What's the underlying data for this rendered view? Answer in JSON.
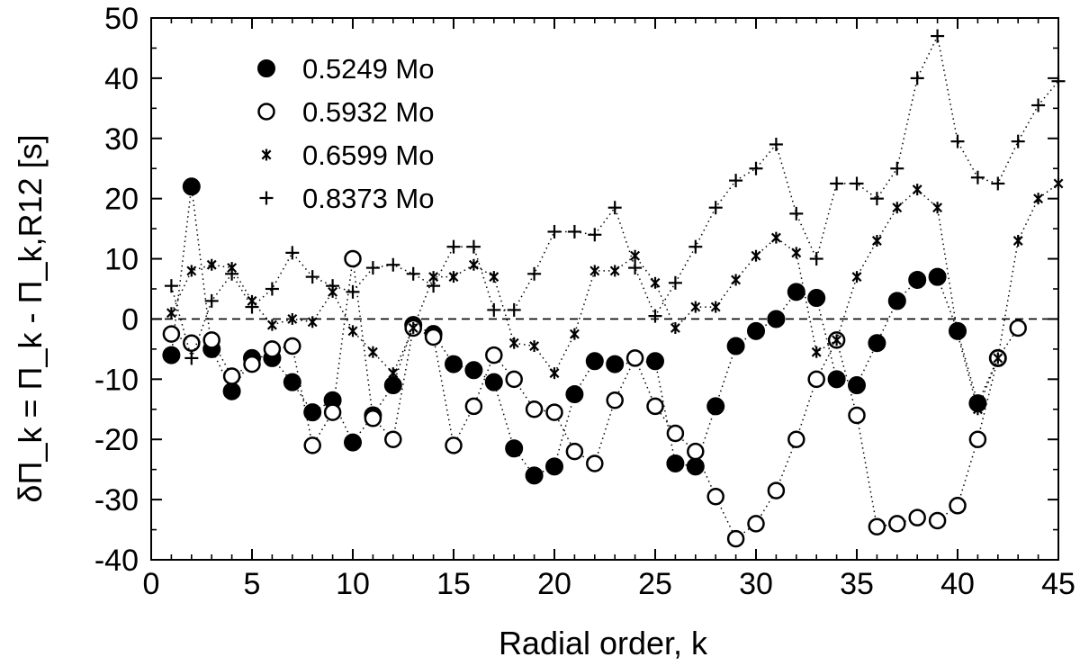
{
  "chart_data": {
    "type": "scatter",
    "xlabel": "Radial order, k",
    "ylabel": "δΠ_k = Π_k - Π_k,R12 [s]",
    "xlim": [
      0,
      45
    ],
    "ylim": [
      -40,
      50
    ],
    "xticks": [
      0,
      5,
      10,
      15,
      20,
      25,
      30,
      35,
      40,
      45
    ],
    "yticks": [
      -40,
      -30,
      -20,
      -10,
      0,
      10,
      20,
      30,
      40,
      50
    ],
    "zero_line": true,
    "grid": false,
    "legend_position": "top-left",
    "series": [
      {
        "name": "0.5249 Mo",
        "marker": "filled-circle",
        "x": [
          1,
          2,
          3,
          4,
          5,
          6,
          7,
          8,
          9,
          10,
          11,
          12,
          13,
          14,
          15,
          16,
          17,
          18,
          19,
          20,
          21,
          22,
          23,
          25,
          26,
          27,
          28,
          29,
          30,
          31,
          32,
          33,
          34,
          35,
          36,
          37,
          38,
          39,
          40,
          41,
          42
        ],
        "y": [
          -6,
          22,
          -5,
          -12,
          -6.5,
          -6.5,
          -10.5,
          -15.5,
          -13.5,
          -20.5,
          -16,
          -11,
          -1,
          -2.5,
          -7.5,
          -8.5,
          -10.5,
          -21.5,
          -26,
          -24.5,
          -12.5,
          -7,
          -7.5,
          -7,
          -24,
          -24.5,
          -14.5,
          -4.5,
          -2,
          0,
          4.5,
          3.5,
          -10,
          -11,
          -4,
          3,
          6.5,
          7,
          -2,
          -14,
          -6.5
        ]
      },
      {
        "name": "0.5932 Mo",
        "marker": "open-circle",
        "x": [
          1,
          2,
          3,
          4,
          5,
          6,
          7,
          8,
          9,
          10,
          11,
          12,
          13,
          14,
          15,
          16,
          17,
          18,
          19,
          20,
          21,
          22,
          23,
          24,
          25,
          26,
          27,
          28,
          29,
          30,
          31,
          32,
          33,
          34,
          35,
          36,
          37,
          38,
          39,
          40,
          41,
          42,
          43
        ],
        "y": [
          -2.5,
          -4,
          -3.5,
          -9.5,
          -7.5,
          -5,
          -4.5,
          -21,
          -15.5,
          10,
          -16.5,
          -20,
          -1.5,
          -3,
          -21,
          -14.5,
          -6,
          -10,
          -15,
          -15.5,
          -22,
          -24,
          -13.5,
          -6.5,
          -14.5,
          -19,
          -22,
          -29.5,
          -36.5,
          -34,
          -28.5,
          -20,
          -10,
          -3.5,
          -16,
          -34.5,
          -34,
          -33,
          -33.5,
          -31,
          -20,
          -6.5,
          -1.5
        ]
      },
      {
        "name": "0.6599 Mo",
        "marker": "asterisk",
        "x": [
          1,
          2,
          3,
          4,
          5,
          6,
          7,
          8,
          9,
          10,
          11,
          12,
          13,
          14,
          15,
          16,
          17,
          18,
          19,
          20,
          21,
          22,
          23,
          24,
          25,
          26,
          27,
          28,
          29,
          30,
          31,
          32,
          33,
          34,
          35,
          36,
          37,
          38,
          39,
          40,
          41,
          42,
          43,
          44,
          45
        ],
        "y": [
          1,
          8,
          9,
          8.5,
          3,
          -1,
          0,
          -0.5,
          4.5,
          -2,
          -5.5,
          -9,
          -1.5,
          7,
          7,
          9,
          7,
          -4,
          -4.5,
          -9,
          -2.5,
          8,
          8,
          10.5,
          6,
          -1.5,
          2,
          2,
          6.5,
          10.5,
          13.5,
          11,
          -5.5,
          -3.5,
          7,
          13,
          18.5,
          21.5,
          18.5,
          -2.5,
          -15,
          -6.5,
          13,
          20,
          22.5
        ]
      },
      {
        "name": "0.8373 Mo",
        "marker": "plus",
        "x": [
          1,
          2,
          3,
          4,
          5,
          6,
          7,
          8,
          9,
          10,
          11,
          12,
          13,
          14,
          15,
          16,
          17,
          18,
          19,
          20,
          21,
          22,
          23,
          24,
          25,
          26,
          27,
          28,
          29,
          30,
          31,
          32,
          33,
          34,
          35,
          36,
          37,
          38,
          39,
          40,
          41,
          42,
          43,
          44,
          45
        ],
        "y": [
          5.5,
          -6.5,
          3,
          7.5,
          2,
          5,
          11,
          7,
          5.5,
          4.5,
          8.5,
          9,
          7.5,
          5.5,
          12,
          12,
          1.5,
          1.5,
          7.5,
          14.5,
          14.5,
          14,
          18.5,
          8.5,
          0.5,
          6,
          12,
          18.5,
          23,
          25,
          29,
          17.5,
          10,
          22.5,
          22.5,
          20,
          25,
          40,
          47,
          29.5,
          23.5,
          22.5,
          29.5,
          35.5,
          39.5
        ]
      }
    ]
  }
}
